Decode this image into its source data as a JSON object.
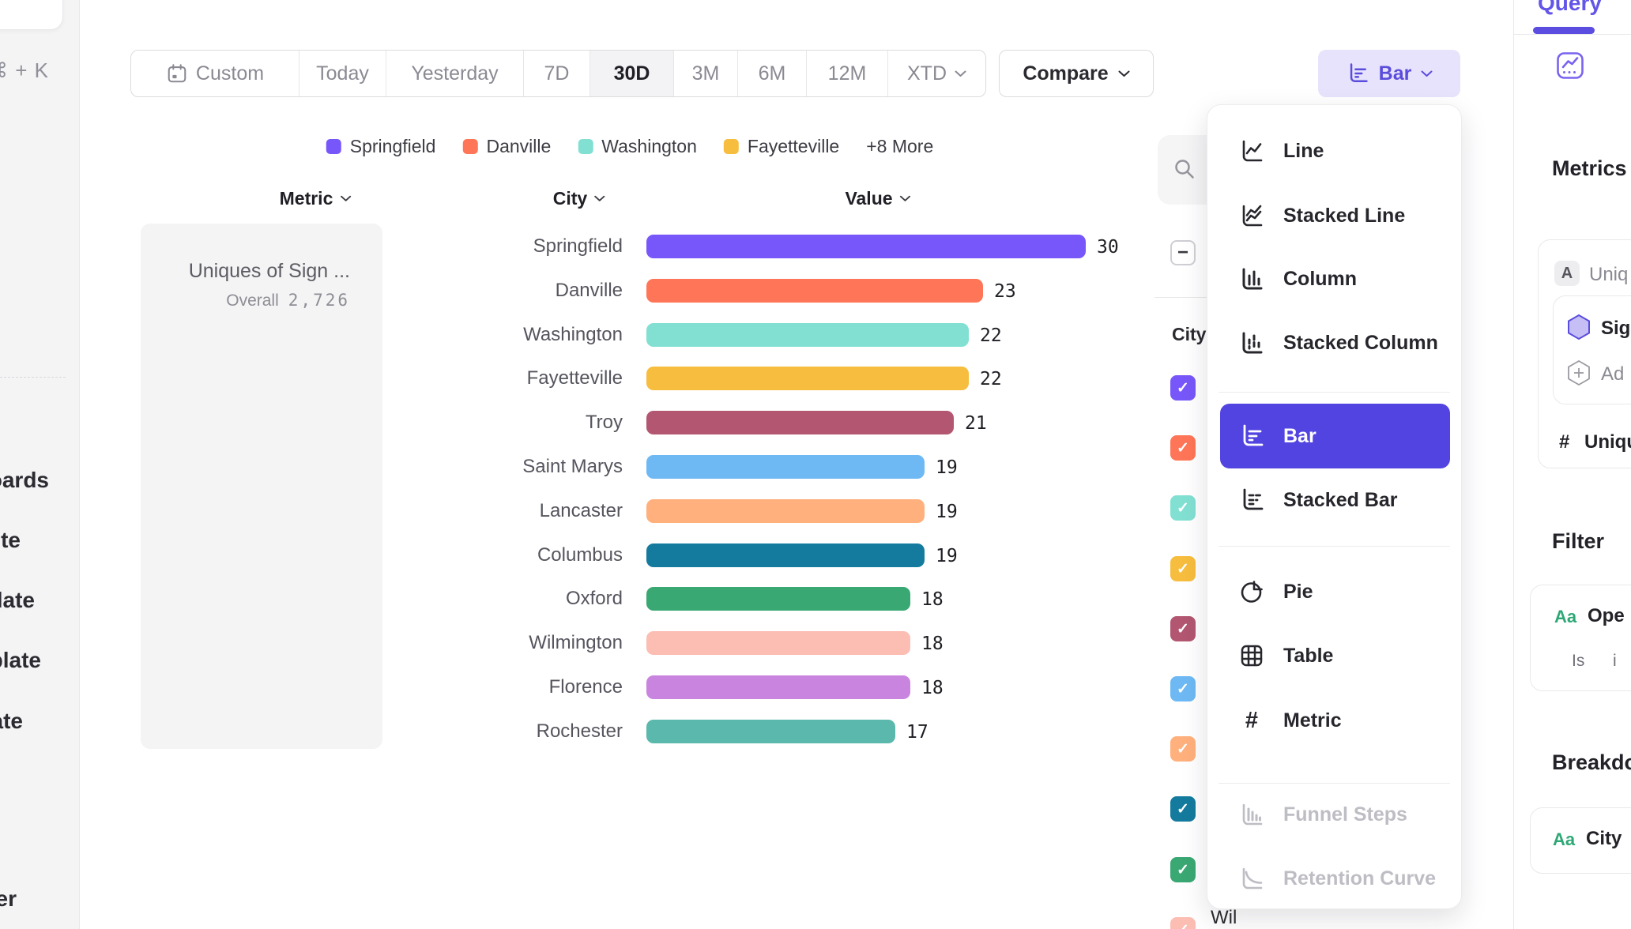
{
  "sidebar": {
    "shortcut": "⌘ + K",
    "items": [
      "boards",
      "te",
      "late",
      "plate",
      "ate",
      "er"
    ]
  },
  "toolbar": {
    "date_ranges": [
      {
        "label": "Custom",
        "icon": "calendar"
      },
      {
        "label": "Today"
      },
      {
        "label": "Yesterday"
      },
      {
        "label": "7D"
      },
      {
        "label": "30D"
      },
      {
        "label": "3M"
      },
      {
        "label": "6M"
      },
      {
        "label": "12M"
      },
      {
        "label": "XTD",
        "chevron": true
      }
    ],
    "active_range": "30D",
    "compare_label": "Compare",
    "chart_type_button": "Bar"
  },
  "legend": {
    "items": [
      {
        "label": "Springfield",
        "color": "#7857fa"
      },
      {
        "label": "Danville",
        "color": "#ff7557"
      },
      {
        "label": "Washington",
        "color": "#82e0d3"
      },
      {
        "label": "Fayetteville",
        "color": "#f7bd3e"
      }
    ],
    "more": "+8 More"
  },
  "columns": {
    "metric": "Metric",
    "city": "City",
    "value": "Value"
  },
  "metric_card": {
    "name": "Uniques of Sign ...",
    "overall_label": "Overall",
    "overall_value": "2,726"
  },
  "chart_data": {
    "type": "bar",
    "orientation": "horizontal",
    "categories": [
      "Springfield",
      "Danville",
      "Washington",
      "Fayetteville",
      "Troy",
      "Saint Marys",
      "Lancaster",
      "Columbus",
      "Oxford",
      "Wilmington",
      "Florence",
      "Rochester"
    ],
    "values": [
      30,
      23,
      22,
      22,
      21,
      19,
      19,
      19,
      18,
      18,
      18,
      17
    ],
    "colors": [
      "#7857fa",
      "#ff7557",
      "#82e0d3",
      "#f7bd3e",
      "#b25671",
      "#6eb9f4",
      "#ffb07c",
      "#147b9e",
      "#3aa873",
      "#fcbdb3",
      "#c984e0",
      "#5ab8ac"
    ],
    "title": "Uniques of Sign ...",
    "xlabel": "Value",
    "ylabel": "City",
    "xlim": [
      0,
      30
    ],
    "grid": false,
    "legend_position": "top"
  },
  "series_panel": {
    "column_label": "City",
    "select_all_state": "indeterminate",
    "checkbox_colors": [
      "#7857fa",
      "#ff7557",
      "#82e0d3",
      "#f7bd3e",
      "#b25671",
      "#6eb9f4",
      "#ffb07c",
      "#147b9e",
      "#3aa873",
      "#fcbdb3"
    ],
    "partial_row_label": "Wil"
  },
  "chart_menu": {
    "items": [
      {
        "label": "Line",
        "icon": "line"
      },
      {
        "label": "Stacked Line",
        "icon": "stacked-line"
      },
      {
        "label": "Column",
        "icon": "column"
      },
      {
        "label": "Stacked Column",
        "icon": "stacked-column"
      },
      {
        "label": "Bar",
        "icon": "bar",
        "selected": true
      },
      {
        "label": "Stacked Bar",
        "icon": "stacked-bar"
      },
      {
        "label": "Pie",
        "icon": "pie"
      },
      {
        "label": "Table",
        "icon": "table"
      },
      {
        "label": "Metric",
        "icon": "metric"
      },
      {
        "label": "Funnel Steps",
        "icon": "funnel",
        "disabled": true
      },
      {
        "label": "Retention Curve",
        "icon": "retention",
        "disabled": true
      }
    ]
  },
  "query_panel": {
    "tab": "Query",
    "metrics_heading": "Metrics",
    "metric_item": {
      "badge": "A",
      "label": "Uniq"
    },
    "event_item": {
      "label": "Sig"
    },
    "add_item": {
      "label": "Ad"
    },
    "measure_item": {
      "prefix": "#",
      "label": "Uniqu"
    },
    "filter_heading": "Filter",
    "filter_item": {
      "badge": "Aa",
      "label": "Ope",
      "operator": "Is",
      "value": "i"
    },
    "breakdown_heading": "Breakdo",
    "breakdown_item": {
      "badge": "Aa",
      "label": "City"
    }
  },
  "colors": {
    "accent": "#5b4de0",
    "menu_selected_bg": "#5244e0",
    "chart_button_bg": "#e7e3fc",
    "sidebar_bg": "#f4f4f5"
  }
}
